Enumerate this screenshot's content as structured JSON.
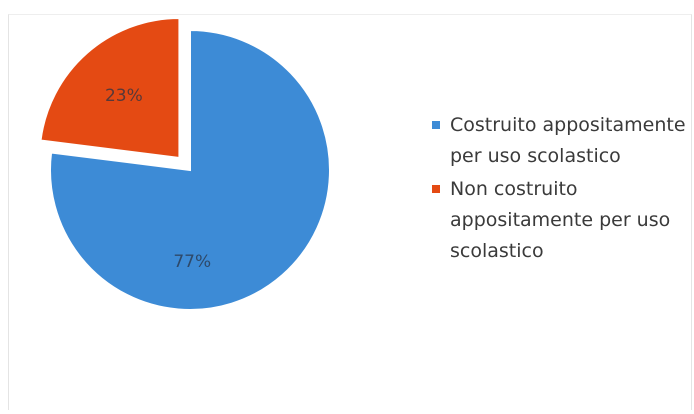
{
  "chart_data": {
    "type": "pie",
    "title": "",
    "exploded": "second slice",
    "slices": [
      {
        "label": "Costruito appositamente per uso scolastico",
        "value": 77,
        "display": "77%",
        "color": "#3d8bd6"
      },
      {
        "label": "Non costruito appositamente per uso scolastico",
        "value": 23,
        "display": "23%",
        "color": "#e44a13"
      }
    ],
    "legend_position": "right"
  }
}
